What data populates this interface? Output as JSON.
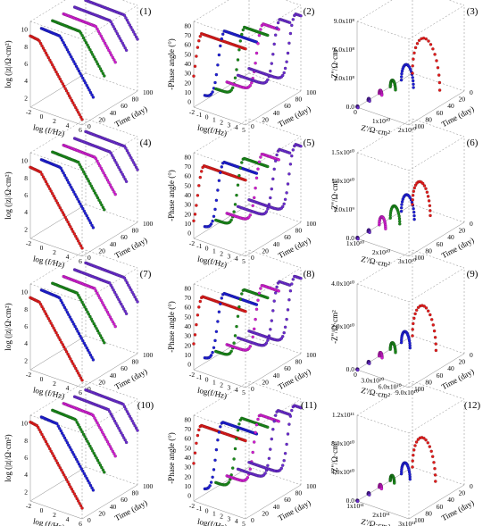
{
  "colors": {
    "c1": "#e11b1b",
    "c2": "#1f1fd6",
    "c3": "#1a8a1a",
    "c4": "#d21ed2",
    "c5": "#6a2cd0"
  },
  "chart_data": [
    {
      "id": "(1)",
      "type": "line",
      "kind": "bode_mod",
      "xlabel": "log (f/Hz)",
      "ylabel": "log (|z|/Ω·cm²)",
      "zlabel": "Time (day)",
      "xticks": [
        "-2",
        "0",
        "2",
        "4",
        "6"
      ],
      "yticks": [
        "2",
        "4",
        "6",
        "8",
        "10"
      ],
      "zticks": [
        "0",
        "20",
        "40",
        "60",
        "80",
        "100"
      ],
      "series": [
        {
          "t": 0,
          "start": 10.3,
          "bp": -1.5
        },
        {
          "t": 20,
          "start": 10.4,
          "bp": 0.2
        },
        {
          "t": 40,
          "start": 10.5,
          "bp": 1.8
        },
        {
          "t": 60,
          "start": 10.5,
          "bp": 2.6
        },
        {
          "t": 80,
          "start": 10.5,
          "bp": 3.2
        },
        {
          "t": 100,
          "start": 10.5,
          "bp": 3.7
        }
      ]
    },
    {
      "id": "(2)",
      "type": "line",
      "kind": "bode_phase",
      "xlabel": "log(f/Hz)",
      "ylabel": "-Phase angle (°)",
      "zlabel": "Time (day)",
      "xticks": [
        "-2",
        "-1",
        "0",
        "1",
        "2",
        "3",
        "4",
        "5"
      ],
      "yticks": [
        "0",
        "10",
        "20",
        "30",
        "40",
        "50",
        "60",
        "70",
        "80"
      ],
      "zticks": [
        "0",
        "20",
        "40",
        "60",
        "80",
        "100"
      ],
      "series": [
        {
          "t": 0,
          "plateau": 80,
          "drop": -1.8
        },
        {
          "t": 20,
          "plateau": 80,
          "drop": -0.2
        },
        {
          "t": 40,
          "plateau": 80,
          "drop": 1.0
        },
        {
          "t": 60,
          "plateau": 79,
          "drop": 2.0
        },
        {
          "t": 80,
          "plateau": 79,
          "drop": 2.8
        },
        {
          "t": 100,
          "plateau": 79,
          "drop": 3.4
        }
      ]
    },
    {
      "id": "(3)",
      "type": "scatter",
      "kind": "nyquist",
      "xlabel": "Z'/Ω·cm²",
      "ylabel": "-Z''/Ω·cm²",
      "zlabel": "Time (day)",
      "yticks": [
        "0.0",
        "3.0x10⁸",
        "6.0x10⁸",
        "9.0x10⁸"
      ],
      "xticks": [
        "0",
        "1x10¹⁰",
        "2x10¹⁰"
      ],
      "zticks": [
        "100",
        "80",
        "60",
        "40",
        "20",
        "0"
      ],
      "series": [
        {
          "t": 100,
          "diam": 0.03
        },
        {
          "t": 80,
          "diam": 0.05
        },
        {
          "t": 60,
          "diam": 0.09
        },
        {
          "t": 40,
          "diam": 0.18
        },
        {
          "t": 20,
          "diam": 0.42
        },
        {
          "t": 0,
          "diam": 0.95
        }
      ]
    },
    {
      "id": "(4)",
      "type": "line",
      "kind": "bode_mod",
      "xlabel": "log (f/Hz)",
      "ylabel": "log (|z|/Ω·cm²)",
      "zlabel": "Time (day)",
      "xticks": [
        "-2",
        "0",
        "2",
        "4",
        "6"
      ],
      "yticks": [
        "2",
        "4",
        "6",
        "8",
        "10"
      ],
      "zticks": [
        "0",
        "20",
        "40",
        "60",
        "80",
        "100"
      ],
      "series": [
        {
          "t": 0,
          "start": 10.3,
          "bp": -1.2
        },
        {
          "t": 20,
          "start": 10.4,
          "bp": 0.3
        },
        {
          "t": 40,
          "start": 10.5,
          "bp": 1.5
        },
        {
          "t": 60,
          "start": 10.5,
          "bp": 2.5
        },
        {
          "t": 80,
          "start": 10.5,
          "bp": 3.2
        },
        {
          "t": 100,
          "start": 10.5,
          "bp": 3.8
        }
      ]
    },
    {
      "id": "(5)",
      "type": "line",
      "kind": "bode_phase",
      "xlabel": "log(f/Hz)",
      "ylabel": "-Phase angle (°)",
      "zlabel": "Time (day)",
      "xticks": [
        "-2",
        "-1",
        "0",
        "1",
        "2",
        "3",
        "4",
        "5"
      ],
      "yticks": [
        "0",
        "10",
        "20",
        "30",
        "40",
        "50",
        "60",
        "70",
        "80"
      ],
      "zticks": [
        "0",
        "20",
        "40",
        "60",
        "80",
        "100"
      ],
      "series": [
        {
          "t": 0,
          "plateau": 80,
          "drop": -1.5
        },
        {
          "t": 20,
          "plateau": 80,
          "drop": -0.3
        },
        {
          "t": 40,
          "plateau": 80,
          "drop": 0.9
        },
        {
          "t": 60,
          "plateau": 80,
          "drop": 1.9
        },
        {
          "t": 80,
          "plateau": 80,
          "drop": 2.7
        },
        {
          "t": 100,
          "plateau": 80,
          "drop": 3.4
        }
      ]
    },
    {
      "id": "(6)",
      "type": "scatter",
      "kind": "nyquist",
      "xlabel": "Z'/Ω·cm²",
      "ylabel": "-Z''/Ω·cm²",
      "zlabel": "Time (day)",
      "yticks": [
        "0.0",
        "5.0x10⁹",
        "1.0x10¹⁰",
        "1.5x10¹⁰"
      ],
      "xticks": [
        "1x10¹⁰",
        "2x10¹⁰",
        "3x10¹⁰"
      ],
      "zticks": [
        "100",
        "80",
        "60",
        "40",
        "20",
        "0"
      ],
      "series": [
        {
          "t": 100,
          "diam": 0.03
        },
        {
          "t": 80,
          "diam": 0.05
        },
        {
          "t": 60,
          "diam": 0.22
        },
        {
          "t": 40,
          "diam": 0.33
        },
        {
          "t": 20,
          "diam": 0.45
        },
        {
          "t": 0,
          "diam": 0.62
        }
      ]
    },
    {
      "id": "(7)",
      "type": "line",
      "kind": "bode_mod",
      "xlabel": "log (f/Hz)",
      "ylabel": "log (|z|/Ω·cm²)",
      "zlabel": "Time (day)",
      "xticks": [
        "-2",
        "0",
        "2",
        "4",
        "6"
      ],
      "yticks": [
        "2",
        "4",
        "6",
        "8",
        "10"
      ],
      "zticks": [
        "0",
        "20",
        "40",
        "60",
        "80",
        "100"
      ],
      "series": [
        {
          "t": 0,
          "start": 10.4,
          "bp": -1.4
        },
        {
          "t": 20,
          "start": 10.5,
          "bp": 0.1
        },
        {
          "t": 40,
          "start": 10.5,
          "bp": 1.3
        },
        {
          "t": 60,
          "start": 10.5,
          "bp": 2.4
        },
        {
          "t": 80,
          "start": 10.5,
          "bp": 3.1
        },
        {
          "t": 100,
          "start": 10.5,
          "bp": 3.7
        }
      ]
    },
    {
      "id": "(8)",
      "type": "line",
      "kind": "bode_phase",
      "xlabel": "log(f/Hz)",
      "ylabel": "-Phase angle (°)",
      "zlabel": "Time (day)",
      "xticks": [
        "-2",
        "-1",
        "0",
        "1",
        "2",
        "3",
        "4",
        "5"
      ],
      "yticks": [
        "0",
        "10",
        "20",
        "30",
        "40",
        "50",
        "60",
        "70",
        "80"
      ],
      "zticks": [
        "0",
        "20",
        "40",
        "60",
        "80",
        "100"
      ],
      "series": [
        {
          "t": 0,
          "plateau": 80,
          "drop": -1.7
        },
        {
          "t": 20,
          "plateau": 80,
          "drop": -0.3
        },
        {
          "t": 40,
          "plateau": 80,
          "drop": 0.9
        },
        {
          "t": 60,
          "plateau": 80,
          "drop": 1.9
        },
        {
          "t": 80,
          "plateau": 79,
          "drop": 2.7
        },
        {
          "t": 100,
          "plateau": 79,
          "drop": 3.3
        }
      ]
    },
    {
      "id": "(9)",
      "type": "scatter",
      "kind": "nyquist",
      "xlabel": "Z'/Ω·cm²",
      "ylabel": "-Z''/Ω·cm²",
      "zlabel": "Time (day)",
      "yticks": [
        "0.0",
        "2.0x10¹⁰",
        "4.0x10¹⁰"
      ],
      "xticks": [
        "0",
        "3.0x10¹⁰",
        "6.0x10¹⁰",
        "9.0x10¹⁰"
      ],
      "zticks": [
        "100",
        "80",
        "60",
        "40",
        "20",
        "0"
      ],
      "series": [
        {
          "t": 100,
          "diam": 0.02
        },
        {
          "t": 80,
          "diam": 0.04
        },
        {
          "t": 60,
          "diam": 0.1
        },
        {
          "t": 40,
          "diam": 0.18
        },
        {
          "t": 20,
          "diam": 0.3
        },
        {
          "t": 0,
          "diam": 0.82
        }
      ]
    },
    {
      "id": "(10)",
      "type": "line",
      "kind": "bode_mod",
      "xlabel": "log (f/Hz)",
      "ylabel": "log (|z|/Ω·cm²)",
      "zlabel": "Time (day)",
      "xticks": [
        "-2",
        "0",
        "2",
        "4",
        "6"
      ],
      "yticks": [
        "2",
        "4",
        "6",
        "8",
        "10"
      ],
      "zticks": [
        "0",
        "20",
        "40",
        "60",
        "80",
        "100"
      ],
      "series": [
        {
          "t": 0,
          "start": 11.2,
          "bp": -1.8
        },
        {
          "t": 20,
          "start": 11.0,
          "bp": -0.3
        },
        {
          "t": 40,
          "start": 11.0,
          "bp": 1.0
        },
        {
          "t": 60,
          "start": 11.0,
          "bp": 2.1
        },
        {
          "t": 80,
          "start": 11.0,
          "bp": 2.9
        },
        {
          "t": 100,
          "start": 11.0,
          "bp": 3.5
        }
      ]
    },
    {
      "id": "(11)",
      "type": "line",
      "kind": "bode_phase",
      "xlabel": "log(f/Hz)",
      "ylabel": "-Phase angle (°)",
      "zlabel": "Time (day)",
      "xticks": [
        "-2",
        "-1",
        "0",
        "1",
        "2",
        "3",
        "4",
        "5"
      ],
      "yticks": [
        "0",
        "10",
        "20",
        "30",
        "40",
        "50",
        "60",
        "70",
        "80"
      ],
      "zticks": [
        "0",
        "20",
        "40",
        "60",
        "80",
        "100"
      ],
      "series": [
        {
          "t": 0,
          "plateau": 82,
          "drop": -1.9
        },
        {
          "t": 20,
          "plateau": 82,
          "drop": -0.5
        },
        {
          "t": 40,
          "plateau": 82,
          "drop": 0.6
        },
        {
          "t": 60,
          "plateau": 81,
          "drop": 1.6
        },
        {
          "t": 80,
          "plateau": 81,
          "drop": 2.5
        },
        {
          "t": 100,
          "plateau": 81,
          "drop": 3.2
        }
      ]
    },
    {
      "id": "(12)",
      "type": "scatter",
      "kind": "nyquist",
      "xlabel": "Z'/Ω·cm²",
      "ylabel": "-Z''/Ω·cm²",
      "zlabel": "Time (day)",
      "yticks": [
        "0.0",
        "4.0x10¹⁰",
        "8.0x10¹⁰",
        "1.2x10¹¹"
      ],
      "xticks": [
        "1x10¹¹",
        "2x10¹¹",
        "3x10¹¹"
      ],
      "zticks": [
        "100",
        "80",
        "60",
        "40",
        "20",
        "0"
      ],
      "series": [
        {
          "t": 100,
          "diam": 0.02
        },
        {
          "t": 80,
          "diam": 0.04
        },
        {
          "t": 60,
          "diam": 0.08
        },
        {
          "t": 40,
          "diam": 0.14
        },
        {
          "t": 20,
          "diam": 0.3
        },
        {
          "t": 0,
          "diam": 0.8
        }
      ]
    }
  ]
}
